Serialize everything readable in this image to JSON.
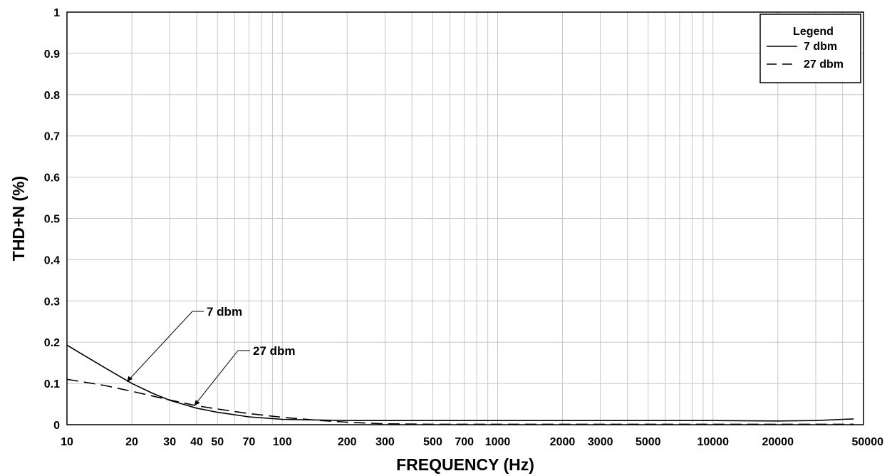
{
  "chart_data": {
    "type": "line",
    "title": "",
    "xlabel": "FREQUENCY (Hz)",
    "ylabel": "THD+N (%)",
    "x_scale": "log",
    "xlim": [
      10,
      50000
    ],
    "ylim": [
      0,
      1
    ],
    "grid": true,
    "legend_position": "top-right",
    "legend_title": "Legend",
    "x_ticks": [
      10,
      20,
      30,
      40,
      50,
      70,
      100,
      200,
      300,
      500,
      700,
      1000,
      2000,
      3000,
      5000,
      10000,
      20000,
      50000
    ],
    "x_tick_labels": [
      "10",
      "20",
      "30",
      "40",
      "50",
      "70",
      "100",
      "200",
      "300",
      "500",
      "700",
      "1000",
      "2000",
      "3000",
      "5000",
      "10000",
      "20000",
      "50000"
    ],
    "y_ticks": [
      0,
      0.1,
      0.2,
      0.3,
      0.4,
      0.5,
      0.6,
      0.7,
      0.8,
      0.9,
      1
    ],
    "y_tick_labels": [
      "0",
      "0.1",
      "0.2",
      "0.3",
      "0.4",
      "0.5",
      "0.6",
      "0.7",
      "0.8",
      "0.9",
      "1"
    ],
    "series": [
      {
        "name": "7 dbm",
        "style": "solid",
        "x": [
          10,
          12,
          15,
          20,
          25,
          30,
          40,
          50,
          70,
          100,
          200,
          300,
          500,
          1000,
          2000,
          5000,
          10000,
          20000,
          30000,
          40000,
          45000
        ],
        "y": [
          0.193,
          0.168,
          0.138,
          0.1,
          0.076,
          0.059,
          0.04,
          0.03,
          0.019,
          0.013,
          0.01,
          0.01,
          0.01,
          0.01,
          0.01,
          0.01,
          0.01,
          0.009,
          0.01,
          0.013,
          0.014
        ]
      },
      {
        "name": "27 dbm",
        "style": "dashed",
        "x": [
          10,
          15,
          20,
          30,
          40,
          50,
          70,
          100,
          150,
          200,
          300,
          500,
          1000,
          2000,
          5000,
          10000,
          20000,
          45000
        ],
        "y": [
          0.11,
          0.095,
          0.081,
          0.06,
          0.046,
          0.038,
          0.027,
          0.018,
          0.01,
          0.006,
          0.002,
          0.001,
          0.001,
          0.001,
          0.001,
          0.001,
          0.001,
          0.001
        ]
      }
    ],
    "annotations": [
      {
        "text": "7 dbm",
        "series": "7 dbm",
        "x": 19,
        "y": 0.104
      },
      {
        "text": "27 dbm",
        "series": "27 dbm",
        "x": 39,
        "y": 0.046
      }
    ]
  }
}
